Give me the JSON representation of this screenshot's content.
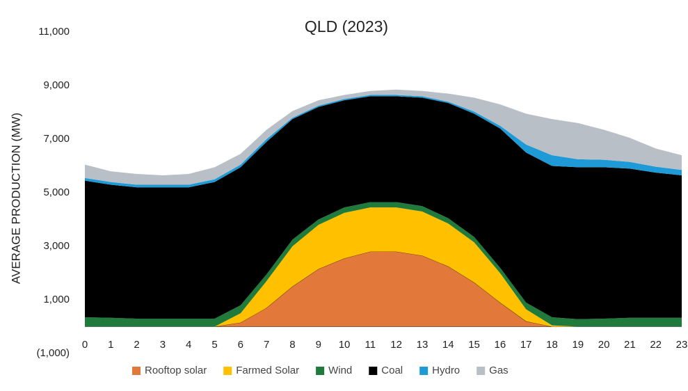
{
  "chart_data": {
    "type": "stacked_area",
    "title": "QLD (2023)",
    "y_label": "AVERAGE PRODUCTION (MW)",
    "x": [
      0,
      1,
      2,
      3,
      4,
      5,
      6,
      7,
      8,
      9,
      10,
      11,
      12,
      13,
      14,
      15,
      16,
      17,
      18,
      19,
      20,
      21,
      22,
      23
    ],
    "xlim": [
      0,
      23
    ],
    "xticks": [
      0,
      1,
      2,
      3,
      4,
      5,
      6,
      7,
      8,
      9,
      10,
      11,
      12,
      13,
      14,
      15,
      16,
      17,
      18,
      19,
      20,
      21,
      22,
      23
    ],
    "ylim": [
      -1000,
      11000
    ],
    "yticks": [
      {
        "value": -1000,
        "label": "(1,000)"
      },
      {
        "value": 1000,
        "label": "1,000"
      },
      {
        "value": 3000,
        "label": "3,000"
      },
      {
        "value": 5000,
        "label": "5,000"
      },
      {
        "value": 7000,
        "label": "7,000"
      },
      {
        "value": 9000,
        "label": "9,000"
      },
      {
        "value": 11000,
        "label": "11,000"
      }
    ],
    "grid": false,
    "legend": "bottom",
    "series": [
      {
        "name": "Rooftop solar",
        "color": "#e2793a",
        "values": [
          0,
          0,
          0,
          0,
          0,
          0,
          150,
          700,
          1500,
          2150,
          2550,
          2800,
          2800,
          2650,
          2250,
          1650,
          900,
          200,
          0,
          0,
          0,
          0,
          0,
          0
        ]
      },
      {
        "name": "Farmed Solar",
        "color": "#ffc000",
        "values": [
          0,
          0,
          0,
          0,
          0,
          0,
          350,
          1000,
          1500,
          1650,
          1700,
          1650,
          1650,
          1650,
          1600,
          1500,
          1100,
          450,
          50,
          0,
          0,
          0,
          0,
          0
        ]
      },
      {
        "name": "Wind",
        "color": "#1f7a3c",
        "values": [
          350,
          330,
          300,
          300,
          300,
          300,
          300,
          250,
          250,
          200,
          200,
          200,
          200,
          200,
          200,
          200,
          200,
          250,
          300,
          280,
          300,
          330,
          330,
          330
        ]
      },
      {
        "name": "Coal",
        "color": "#000000",
        "values": [
          5100,
          4970,
          4900,
          4900,
          4900,
          5100,
          5150,
          4950,
          4500,
          4200,
          4000,
          3950,
          3950,
          4050,
          4300,
          4600,
          5200,
          5600,
          5650,
          5670,
          5650,
          5570,
          5420,
          5320
        ]
      },
      {
        "name": "Hydro",
        "color": "#1e9ad6",
        "values": [
          100,
          100,
          100,
          100,
          100,
          100,
          100,
          100,
          50,
          50,
          50,
          50,
          50,
          50,
          50,
          80,
          100,
          300,
          400,
          300,
          280,
          250,
          220,
          200
        ]
      },
      {
        "name": "Gas",
        "color": "#b8bfc7",
        "values": [
          500,
          400,
          400,
          350,
          400,
          450,
          400,
          350,
          250,
          200,
          150,
          150,
          200,
          200,
          300,
          520,
          800,
          1150,
          1350,
          1350,
          1120,
          900,
          680,
          550
        ]
      }
    ]
  }
}
